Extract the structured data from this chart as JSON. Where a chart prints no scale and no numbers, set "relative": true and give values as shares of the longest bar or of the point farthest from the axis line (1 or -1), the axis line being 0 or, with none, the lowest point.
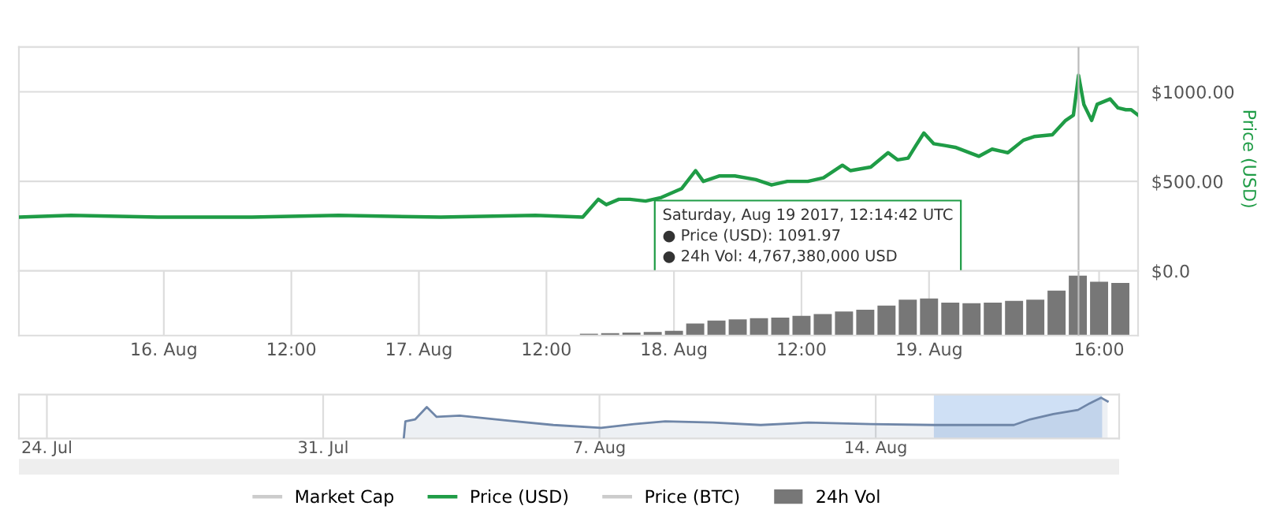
{
  "chart_data": [
    {
      "type": "line",
      "ylabel": "Price (USD)",
      "legend": "bottom",
      "grid": "y",
      "tick_labels": "y",
      "marker": "none",
      "line_style": "solid",
      "x": [
        "2017-08-15T10:22",
        "2017-08-15T15:16",
        "2017-08-15T23:25",
        "2017-08-16T08:18",
        "2017-08-16T16:26",
        "2017-08-17T02:04",
        "2017-08-17T10:58",
        "2017-08-17T15:25",
        "2017-08-17T16:53",
        "2017-08-17T17:38",
        "2017-08-17T18:49",
        "2017-08-17T19:51",
        "2017-08-17T21:20",
        "2017-08-17T22:49",
        "2017-08-18T00:44",
        "2017-08-18T02:02",
        "2017-08-18T02:46",
        "2017-08-18T04:15",
        "2017-08-18T05:44",
        "2017-08-18T07:42",
        "2017-08-18T09:11",
        "2017-08-18T10:40",
        "2017-08-18T12:36",
        "2017-08-18T14:04",
        "2017-08-18T15:51",
        "2017-08-18T16:36",
        "2017-08-18T18:31",
        "2017-08-18T20:09",
        "2017-08-18T21:02",
        "2017-08-18T22:02",
        "2017-08-18T22:46",
        "2017-08-18T23:31",
        "2017-08-19T00:27",
        "2017-08-19T01:29",
        "2017-08-19T02:28",
        "2017-08-19T04:42",
        "2017-08-19T05:56",
        "2017-08-19T07:25",
        "2017-08-19T08:53",
        "2017-08-19T09:53",
        "2017-08-19T11:36",
        "2017-08-19T12:51",
        "2017-08-19T13:35",
        "2017-08-19T14:04",
        "2017-08-19T14:34",
        "2017-08-19T15:18",
        "2017-08-19T15:49",
        "2017-08-19T17:02",
        "2017-08-19T17:47",
        "2017-08-19T18:31",
        "2017-08-19T19:01",
        "2017-08-19T19:40"
      ],
      "series": [
        {
          "name": "Market Cap",
          "color": "#cccccc",
          "values": [
            null,
            null,
            null,
            null,
            null,
            null,
            null,
            null,
            null,
            null,
            null,
            null,
            null,
            null,
            null,
            null,
            null,
            null,
            null,
            null,
            null,
            null,
            null,
            null,
            null,
            null,
            null,
            null,
            null,
            null,
            null,
            null,
            null,
            null,
            null,
            null,
            null,
            null,
            null,
            null,
            null,
            null,
            null,
            null,
            null,
            null,
            null,
            null,
            null,
            null,
            null,
            null
          ]
        },
        {
          "name": "Price (USD)",
          "color": "#1f9c46",
          "values": [
            300,
            310,
            300,
            300,
            310,
            300,
            310,
            300,
            400,
            370,
            400,
            400,
            390,
            410,
            460,
            560,
            500,
            530,
            530,
            510,
            480,
            500,
            500,
            520,
            590,
            560,
            580,
            660,
            620,
            630,
            700,
            770,
            710,
            700,
            690,
            640,
            680,
            660,
            730,
            750,
            760,
            840,
            870,
            1091.97,
            930,
            840,
            930,
            960,
            910,
            900,
            900,
            870
          ]
        },
        {
          "name": "Price (BTC)",
          "color": "#cccccc",
          "values": [
            null,
            null,
            null,
            null,
            null,
            null,
            null,
            null,
            null,
            null,
            null,
            null,
            null,
            null,
            null,
            null,
            null,
            null,
            null,
            null,
            null,
            null,
            null,
            null,
            null,
            null,
            null,
            null,
            null,
            null,
            null,
            null,
            null,
            null,
            null,
            null,
            null,
            null,
            null,
            null,
            null,
            null,
            null,
            null,
            null,
            null,
            null,
            null,
            null,
            null,
            null,
            null
          ]
        }
      ],
      "xlim": [
        "2017-08-15T10:22",
        "2017-08-19T19:40"
      ],
      "ylim": [
        0,
        1250
      ],
      "yticks": [
        {
          "value": 0,
          "label": "$0.0"
        },
        {
          "value": 500,
          "label": "$500.00"
        },
        {
          "value": 1000,
          "label": "$1000.00"
        }
      ],
      "ref_lines": [
        {
          "axis": "x",
          "value": "2017-08-19T14:04",
          "color": "#bbbbbb"
        }
      ],
      "annotations": [
        "Saturday, Aug 19 2017, 12:14:42 UTC",
        "● Price (USD): 1091.97",
        "● 24h Vol: 4,767,380,000 USD"
      ]
    },
    {
      "type": "bar",
      "relative": true,
      "tick_labels": "x",
      "grid": "x",
      "x": [
        "2017-08-17T16:00",
        "2017-08-17T18:00",
        "2017-08-17T20:00",
        "2017-08-17T22:00",
        "2017-08-18T00:00",
        "2017-08-18T02:00",
        "2017-08-18T04:00",
        "2017-08-18T06:00",
        "2017-08-18T08:00",
        "2017-08-18T10:00",
        "2017-08-18T12:00",
        "2017-08-18T14:00",
        "2017-08-18T16:00",
        "2017-08-18T18:00",
        "2017-08-18T20:00",
        "2017-08-18T22:00",
        "2017-08-19T00:00",
        "2017-08-19T02:00",
        "2017-08-19T04:00",
        "2017-08-19T06:00",
        "2017-08-19T08:00",
        "2017-08-19T10:00",
        "2017-08-19T12:00",
        "2017-08-19T14:00",
        "2017-08-19T16:00",
        "2017-08-19T18:00"
      ],
      "series": [
        {
          "name": "24h Vol",
          "color": "#777777",
          "values": [
            0.03,
            0.04,
            0.05,
            0.06,
            0.08,
            0.2,
            0.25,
            0.27,
            0.29,
            0.3,
            0.33,
            0.36,
            0.4,
            0.43,
            0.5,
            0.6,
            0.62,
            0.55,
            0.54,
            0.55,
            0.58,
            0.6,
            0.75,
            1.0,
            0.9,
            0.88
          ]
        }
      ],
      "xlim": [
        "2017-08-15T10:22",
        "2017-08-19T19:40"
      ],
      "xticks": [
        {
          "value": "2017-08-16T00:00",
          "label": "16. Aug"
        },
        {
          "value": "2017-08-16T12:00",
          "label": "12:00"
        },
        {
          "value": "2017-08-17T00:00",
          "label": "17. Aug"
        },
        {
          "value": "2017-08-17T12:00",
          "label": "12:00"
        },
        {
          "value": "2017-08-18T00:00",
          "label": "18. Aug"
        },
        {
          "value": "2017-08-18T12:00",
          "label": "12:00"
        },
        {
          "value": "2017-08-19T00:00",
          "label": "19. Aug"
        },
        {
          "value": "2017-08-19T16:00",
          "label": "16:00"
        }
      ],
      "ref_lines": [
        {
          "axis": "x",
          "value": "2017-08-19T14:04",
          "color": "#bbbbbb"
        }
      ]
    },
    {
      "type": "area",
      "relative": true,
      "tick_labels": "x",
      "grid": "x",
      "x": [
        "2017-08-02T01:00",
        "2017-08-02T02:00",
        "2017-08-02T08:00",
        "2017-08-02T15:00",
        "2017-08-02T21:00",
        "2017-08-03T11:00",
        "2017-08-04T16:00",
        "2017-08-05T20:00",
        "2017-08-07T01:00",
        "2017-08-07T21:00",
        "2017-08-08T16:00",
        "2017-08-09T21:00",
        "2017-08-11T02:00",
        "2017-08-12T07:00",
        "2017-08-13T21:00",
        "2017-08-15T12:00",
        "2017-08-17T12:00",
        "2017-08-17T22:00",
        "2017-08-18T12:00",
        "2017-08-19T03:00",
        "2017-08-19T10:00",
        "2017-08-19T17:00",
        "2017-08-19T21:00"
      ],
      "series": [
        {
          "color": "#6f86a8",
          "values": [
            0,
            0.42,
            0.47,
            0.77,
            0.53,
            0.56,
            0.44,
            0.33,
            0.26,
            0.35,
            0.42,
            0.39,
            0.33,
            0.39,
            0.35,
            0.33,
            0.33,
            0.47,
            0.6,
            0.7,
            0.86,
            1.0,
            0.91
          ]
        }
      ],
      "xlim": [
        "2017-07-23T07:00",
        "2017-08-20T04:00"
      ],
      "xticks": [
        {
          "value": "2017-07-24T00:00",
          "label": "24. Jul"
        },
        {
          "value": "2017-07-31T00:00",
          "label": "31. Jul"
        },
        {
          "value": "2017-08-07T00:00",
          "label": "7. Aug"
        },
        {
          "value": "2017-08-14T00:00",
          "label": "14. Aug"
        }
      ],
      "bands": [
        {
          "axis": "x",
          "from": "2017-08-15T12:00",
          "to": "2017-08-19T17:00",
          "color": "#cfe0f5"
        }
      ]
    }
  ]
}
